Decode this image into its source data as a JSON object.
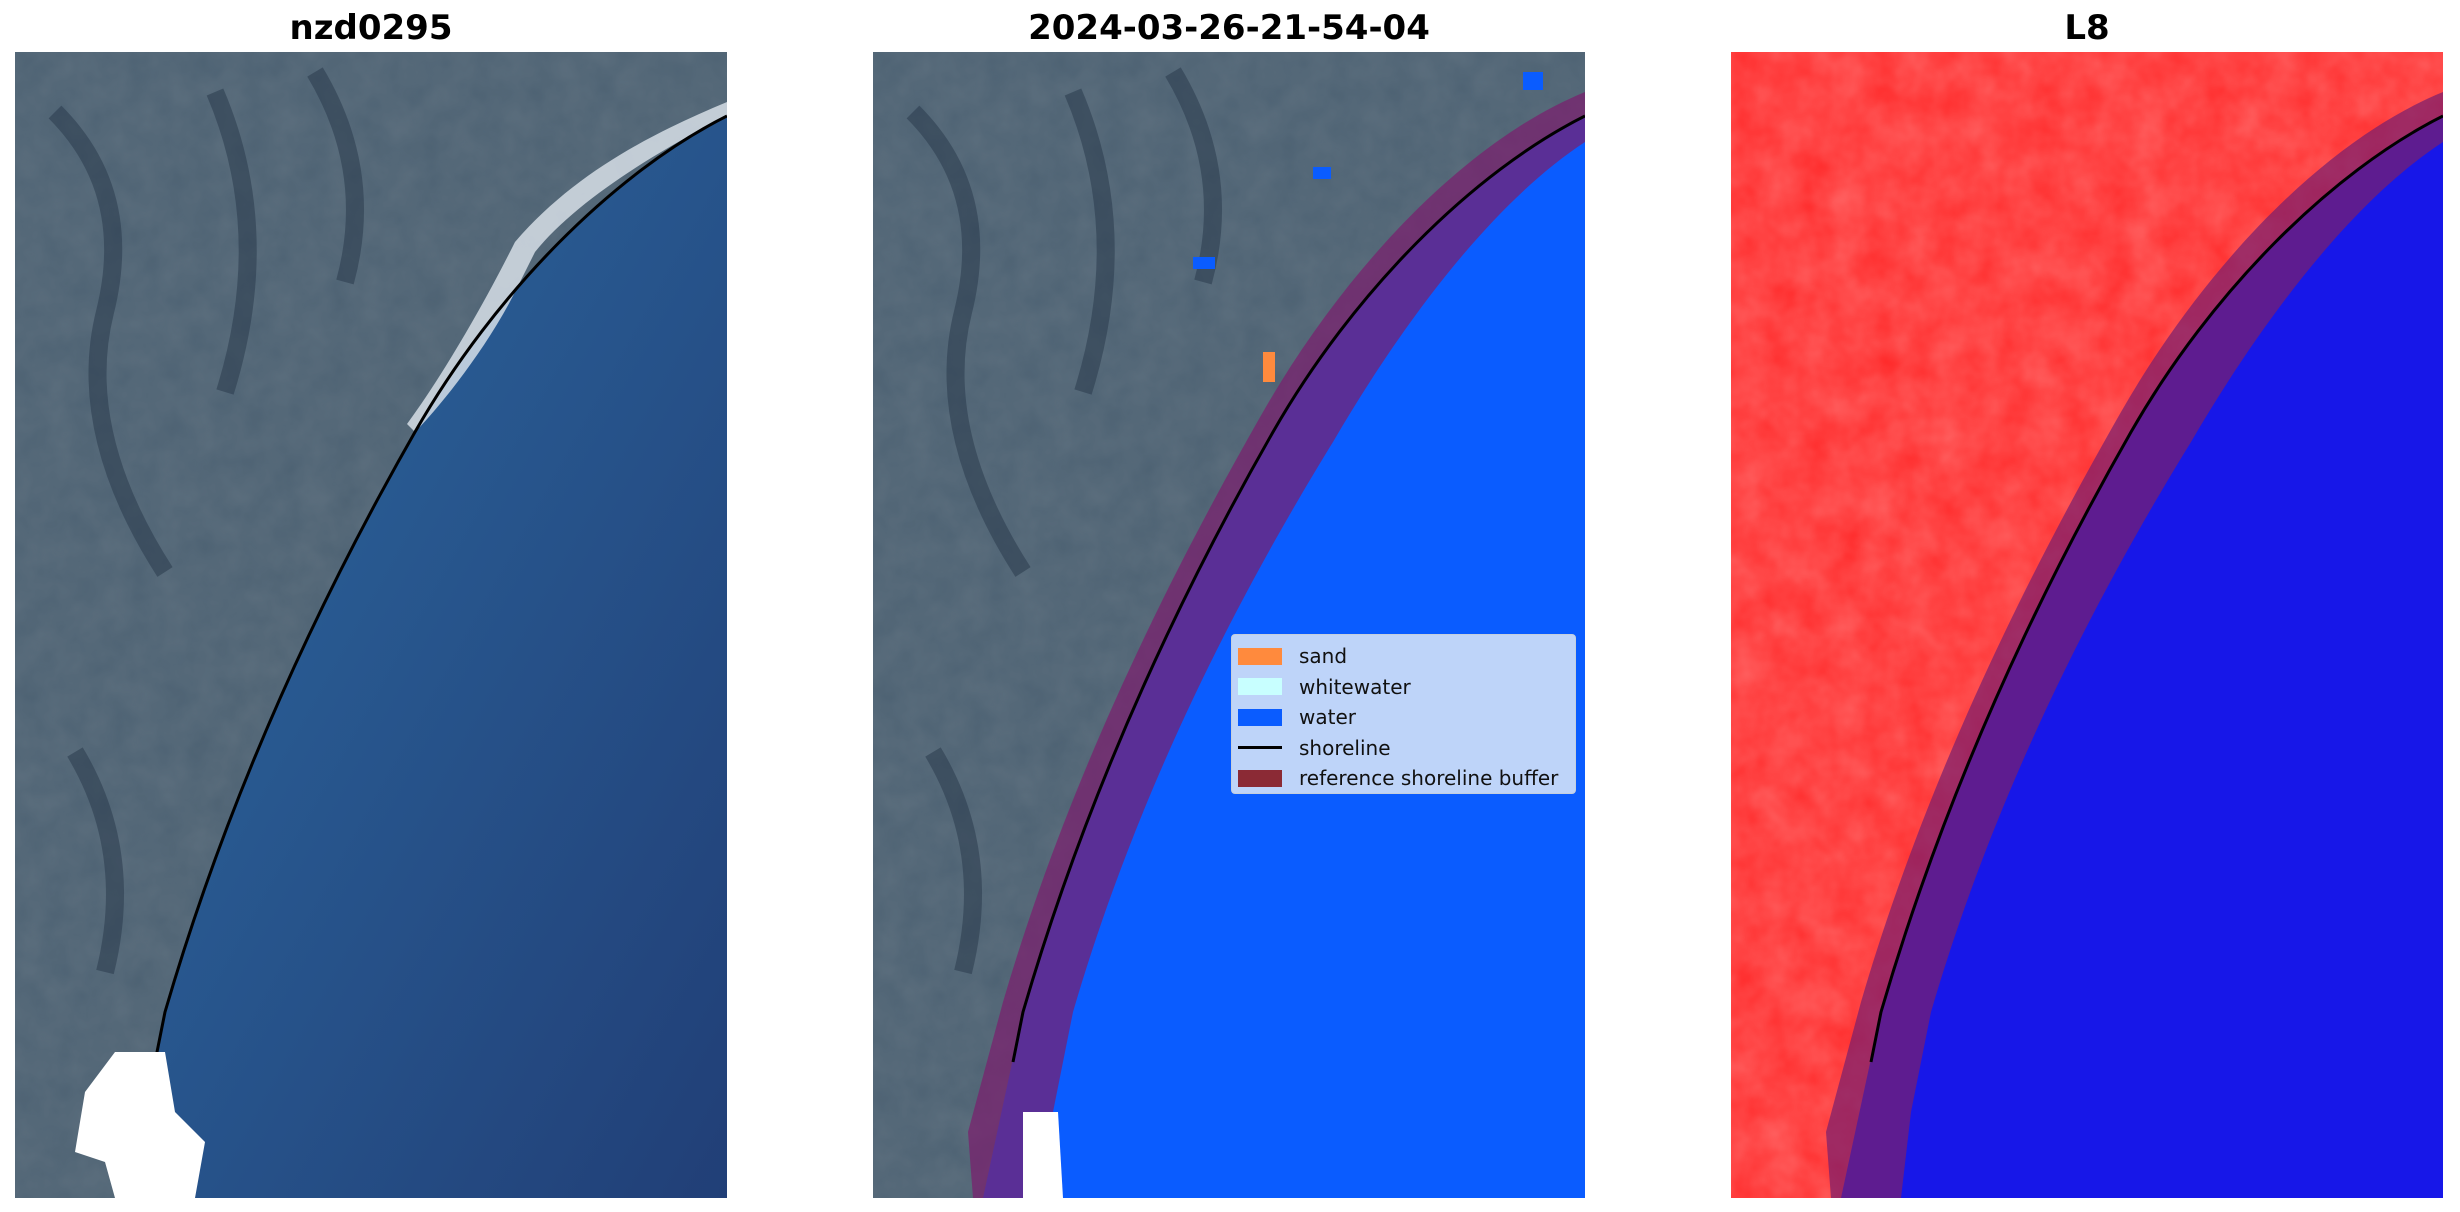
{
  "panels": [
    {
      "title": "nzd0295"
    },
    {
      "title": "2024-03-26-21-54-04"
    },
    {
      "title": "L8"
    }
  ],
  "legend": {
    "items": [
      {
        "label": "sand",
        "color": "#ff8a3d",
        "kind": "patch"
      },
      {
        "label": "whitewater",
        "color": "#c8ffff",
        "kind": "patch"
      },
      {
        "label": "water",
        "color": "#0a5cff",
        "kind": "patch"
      },
      {
        "label": "shoreline",
        "color": "#000000",
        "kind": "line"
      },
      {
        "label": "reference shoreline buffer",
        "color": "#8b2a35",
        "kind": "patch"
      }
    ]
  },
  "colors": {
    "rgb_sea": "#244d85",
    "rgb_land": "#4a5e70",
    "classified_water": "#0a5cff",
    "index_land": "#ff2a2a",
    "index_water": "#1717e8",
    "buffer": "#7a1f6e",
    "nodata": "#ffffff"
  }
}
